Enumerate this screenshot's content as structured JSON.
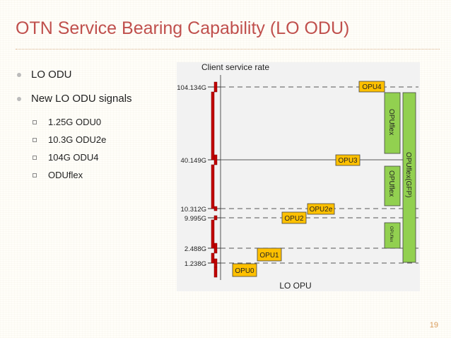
{
  "slide": {
    "title": "OTN Service Bearing Capability (LO ODU)",
    "page_number": "19"
  },
  "bullets": [
    {
      "text": "LO ODU",
      "level": 1
    },
    {
      "text": "New LO ODU signals",
      "level": 1
    },
    {
      "text": "1.25G ODU0",
      "level": 2
    },
    {
      "text": "10.3G ODU2e",
      "level": 2
    },
    {
      "text": "104G  ODU4",
      "level": 2
    },
    {
      "text": "ODUflex",
      "level": 2
    }
  ],
  "diagram": {
    "y_axis_label": "Client service rate",
    "x_axis_label": "LO OPU",
    "rate_levels": [
      "104.134G",
      "40.149G",
      "10.312G",
      "9.995G",
      "2.488G",
      "1.238G"
    ],
    "boxes": [
      "OPU0",
      "OPU1",
      "OPU2",
      "OPU2e",
      "OPU3",
      "OPU4"
    ],
    "flex_boxes": [
      "OPUflex",
      "OPUflex",
      "OPUflex",
      "OPUflex(GFP)"
    ],
    "colors": {
      "opu_box": "#ffc000",
      "flex_box": "#92d050",
      "rate_bar": "#c00000",
      "title": "#c0504d"
    }
  }
}
